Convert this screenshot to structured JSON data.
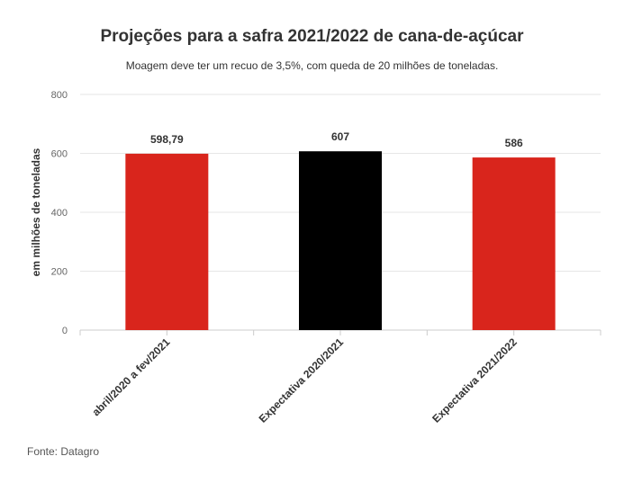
{
  "header": {
    "title": "Projeções para a safra 2021/2022 de cana-de-açúcar",
    "subtitle": "Moagem deve ter um recuo de 3,5%, com queda de 20 milhões de toneladas."
  },
  "footer": {
    "source": "Fonte: Datagro"
  },
  "chart_data": {
    "type": "bar",
    "title": "Projeções para a safra 2021/2022 de cana-de-açúcar",
    "subtitle": "Moagem deve ter um recuo de 3,5%, com queda de 20 milhões de toneladas.",
    "xlabel": "",
    "ylabel": "em milhões de toneladas",
    "categories": [
      "abril/2020 a fev/2021",
      "Expectativa 2020/2021",
      "Expectativa 2021/2022"
    ],
    "values": [
      598.79,
      607,
      586
    ],
    "data_labels": [
      "598,79",
      "607",
      "586"
    ],
    "bar_colors": [
      "#d9251c",
      "#000000",
      "#d9251c"
    ],
    "ylim": [
      0,
      800
    ],
    "yticks": [
      0,
      200,
      400,
      600,
      800
    ],
    "grid": true,
    "legend": "none"
  }
}
